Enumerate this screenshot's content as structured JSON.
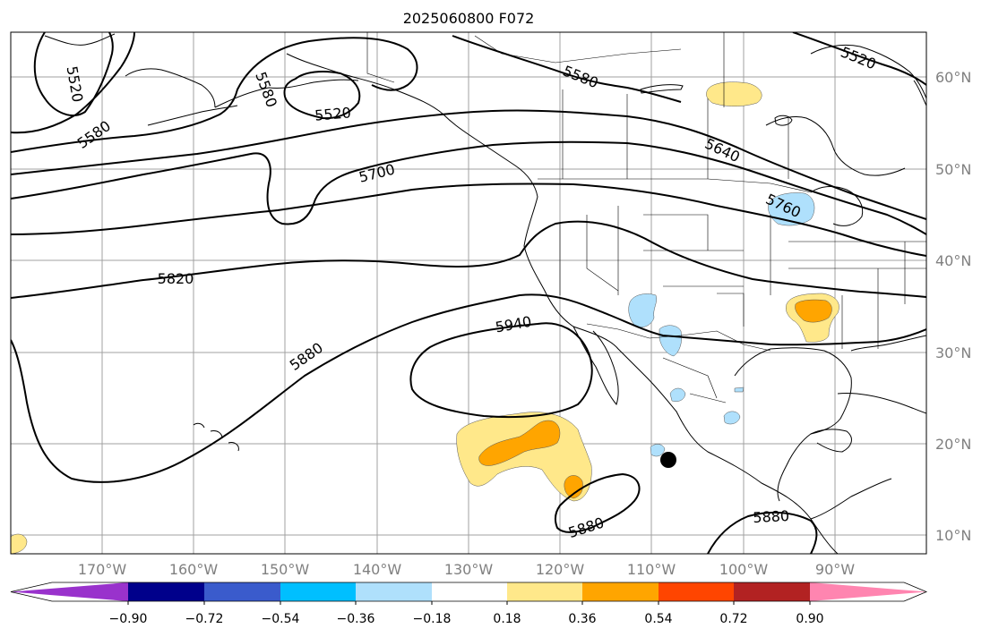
{
  "title": "2025060800 F072",
  "lat_labels": [
    "60°N",
    "50°N",
    "40°N",
    "30°N",
    "20°N",
    "10°N"
  ],
  "lon_labels": [
    "170°W",
    "160°W",
    "150°W",
    "140°W",
    "130°W",
    "120°W",
    "110°W",
    "100°W",
    "90°W"
  ],
  "contour_labels": [
    "5520",
    "5580",
    "5520",
    "5580",
    "5520",
    "5580",
    "5640",
    "5700",
    "5760",
    "5820",
    "5880",
    "5940",
    "5880",
    "5880"
  ],
  "colorbar": {
    "ticks": [
      "−0.90",
      "−0.72",
      "−0.54",
      "−0.36",
      "−0.18",
      "0.18",
      "0.36",
      "0.54",
      "0.72",
      "0.90"
    ],
    "colors": [
      "#9932cc",
      "#00008b",
      "#3a5bcc",
      "#00bfff",
      "#afe0fc",
      "#ffffff",
      "#ffe88a",
      "#ffa500",
      "#ff4500",
      "#b22222",
      "#ff85b0"
    ]
  },
  "shading_colors": {
    "light_yellow": "#ffe88a",
    "orange": "#ffa500",
    "light_blue": "#afe0fc"
  }
}
